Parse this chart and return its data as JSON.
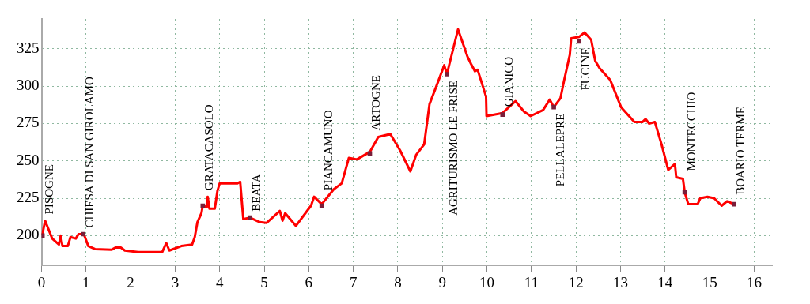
{
  "chart_data": {
    "type": "line",
    "xlim": [
      0,
      16.4
    ],
    "xticks": [
      0,
      1,
      2,
      3,
      4,
      5,
      6,
      7,
      8,
      9,
      10,
      11,
      12,
      13,
      14,
      15,
      16
    ],
    "ylim": [
      180,
      345
    ],
    "yticks": [
      200,
      225,
      250,
      275,
      300,
      325
    ],
    "grid": true,
    "series": [
      {
        "color": "#ff0000",
        "marker": "none",
        "x": [
          0.02,
          0.08,
          0.24,
          0.39,
          0.43,
          0.47,
          0.59,
          0.65,
          0.77,
          0.83,
          0.95,
          1.05,
          1.2,
          1.57,
          1.66,
          1.78,
          1.87,
          2.17,
          2.71,
          2.8,
          2.87,
          3.14,
          3.38,
          3.44,
          3.5,
          3.59,
          3.62,
          3.71,
          3.73,
          3.77,
          3.89,
          3.95,
          4.0,
          4.4,
          4.46,
          4.53,
          4.68,
          4.9,
          5.05,
          5.35,
          5.41,
          5.47,
          5.71,
          6.05,
          6.12,
          6.29,
          6.56,
          6.74,
          6.9,
          7.08,
          7.37,
          7.56,
          7.83,
          8.05,
          8.28,
          8.41,
          8.59,
          8.71,
          8.89,
          9.04,
          9.1,
          9.35,
          9.56,
          9.64,
          9.73,
          9.79,
          9.98,
          9.99,
          10.35,
          10.64,
          10.83,
          10.98,
          11.26,
          11.41,
          11.5,
          11.65,
          11.74,
          11.86,
          11.89,
          12.07,
          12.19,
          12.34,
          12.43,
          12.53,
          12.77,
          13.01,
          13.19,
          13.31,
          13.49,
          13.56,
          13.64,
          13.77,
          13.92,
          14.07,
          14.22,
          14.25,
          14.4,
          14.44,
          14.52,
          14.73,
          14.79,
          14.95,
          15.1,
          15.27,
          15.39,
          15.55
        ],
        "values": [
          201,
          210,
          198,
          194,
          200,
          193,
          193,
          199,
          198,
          201,
          201,
          193,
          191,
          190.5,
          192,
          192,
          190,
          189,
          189,
          195,
          190,
          193,
          194,
          199,
          209,
          215,
          220,
          219,
          226,
          218,
          218,
          230,
          235,
          235,
          236,
          211,
          212,
          209,
          208.5,
          216.5,
          210,
          215,
          206.5,
          220,
          226,
          221,
          231,
          235,
          252,
          251,
          256,
          266,
          268,
          257,
          243,
          254,
          261,
          288,
          302,
          314,
          308,
          338,
          320,
          315,
          310,
          311,
          293,
          280,
          282,
          290,
          283,
          280,
          284,
          291,
          286,
          292,
          305,
          321,
          332,
          333,
          336,
          331,
          317,
          312,
          304,
          286,
          280,
          276,
          276,
          278,
          275,
          276,
          261,
          244,
          248,
          239,
          238,
          229,
          221,
          221,
          225,
          226,
          225,
          220,
          223,
          221
        ]
      },
      {
        "type": "scatter",
        "color": "#7a1f3a",
        "marker": "square",
        "x": [
          0.02,
          0.93,
          3.62,
          4.68,
          6.29,
          7.37,
          9.1,
          10.35,
          11.5,
          12.07,
          14.44,
          15.55
        ],
        "values": [
          200,
          201,
          220,
          212,
          220,
          255,
          308,
          281,
          286,
          330,
          229,
          221
        ]
      }
    ],
    "annotations": [
      {
        "text": "PISOGNE",
        "x": 0.02,
        "y": 200
      },
      {
        "text": "CHIESA DI SAN GIROLAMO",
        "x": 0.93,
        "y": 201
      },
      {
        "text": "GRATACASOLO",
        "x": 3.62,
        "y": 220
      },
      {
        "text": "BEATA",
        "x": 4.68,
        "y": 212
      },
      {
        "text": "PIANCAMUNO",
        "x": 6.29,
        "y": 220
      },
      {
        "text": "ARTOGNE",
        "x": 7.37,
        "y": 255
      },
      {
        "text": "AGRITURISMO LE FRISE",
        "x": 9.1,
        "y": 308
      },
      {
        "text": "GIANICO",
        "x": 10.35,
        "y": 281
      },
      {
        "text": "PELLALEPRE",
        "x": 11.5,
        "y": 286
      },
      {
        "text": "FUCINE",
        "x": 12.07,
        "y": 330
      },
      {
        "text": "MONTECCHIO",
        "x": 14.44,
        "y": 229
      },
      {
        "text": "BOARIO TERME",
        "x": 15.55,
        "y": 221
      }
    ]
  }
}
